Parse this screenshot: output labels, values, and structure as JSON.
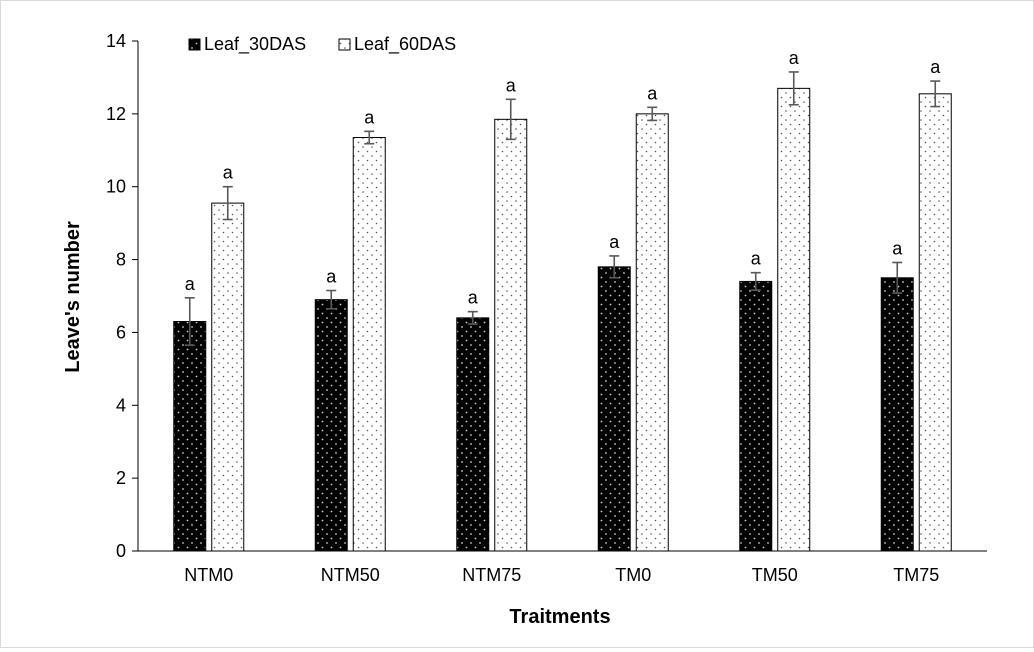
{
  "chart_data": {
    "type": "bar",
    "title": "",
    "xlabel": "Traitments",
    "ylabel": "Leave's number",
    "ylim": [
      0,
      14
    ],
    "yticks": [
      0,
      2,
      4,
      6,
      8,
      10,
      12,
      14
    ],
    "categories": [
      "NTM0",
      "NTM50",
      "NTM75",
      "TM0",
      "TM50",
      "TM75"
    ],
    "legend_position": "top-left",
    "grid": false,
    "series": [
      {
        "name": "Leaf_30DAS",
        "color": "#000000",
        "pattern": "white dots on black",
        "values": [
          6.3,
          6.9,
          6.4,
          7.8,
          7.4,
          7.5
        ],
        "errors": [
          0.65,
          0.25,
          0.17,
          0.3,
          0.24,
          0.42
        ],
        "labels": [
          "a",
          "a",
          "a",
          "a",
          "a",
          "a"
        ]
      },
      {
        "name": "Leaf_60DAS",
        "color": "#ffffff",
        "pattern": "black dots on white",
        "values": [
          9.55,
          11.35,
          11.85,
          12.0,
          12.7,
          12.55
        ],
        "errors": [
          0.45,
          0.17,
          0.55,
          0.18,
          0.45,
          0.35
        ],
        "labels": [
          "a",
          "a",
          "a",
          "a",
          "a",
          "a"
        ]
      }
    ]
  }
}
